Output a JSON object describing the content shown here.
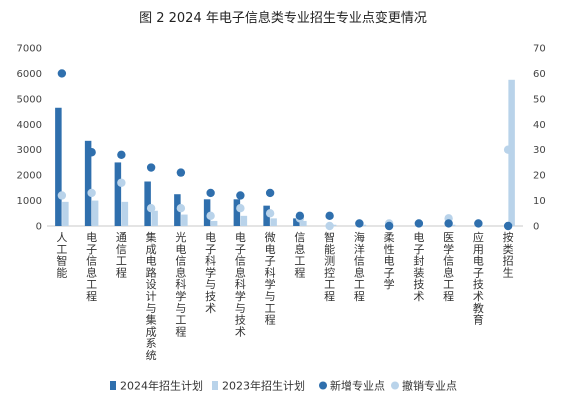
{
  "chart_data": {
    "type": "bar",
    "title": "图 2  2024 年电子信息类专业招生专业点变更情况",
    "categories": [
      "人工智能",
      "电子信息工程",
      "通信工程",
      "集成电路设计与集成系统",
      "光电信息科学与工程",
      "电子科学与技术",
      "电子信息科学与技术",
      "微电子科学与工程",
      "信息工程",
      "智能测控工程",
      "海洋信息工程",
      "柔性电子学",
      "电子封装技术",
      "医学信息工程",
      "应用电子技术教育",
      "按类招生"
    ],
    "left_axis": {
      "min": 0,
      "max": 7000,
      "ticks": [
        "0",
        "1000",
        "2000",
        "3000",
        "4000",
        "5000",
        "6000",
        "7000"
      ]
    },
    "right_axis": {
      "min": 0,
      "max": 70,
      "ticks": [
        "0",
        "10",
        "20",
        "30",
        "40",
        "50",
        "60",
        "70"
      ]
    },
    "series": [
      {
        "name": "2024年招生计划",
        "kind": "bar",
        "axis": "left",
        "color": "#2f6fad",
        "values": [
          4650,
          3350,
          2500,
          1750,
          1250,
          1050,
          1050,
          800,
          300,
          0,
          0,
          0,
          0,
          0,
          0,
          0
        ]
      },
      {
        "name": "2023年招生计划",
        "kind": "bar",
        "axis": "left",
        "color": "#b9d3ea",
        "values": [
          950,
          1000,
          950,
          600,
          450,
          200,
          400,
          300,
          200,
          50,
          50,
          20,
          20,
          50,
          20,
          5750
        ]
      },
      {
        "name": "新增专业点",
        "kind": "point",
        "axis": "right",
        "color": "#2f6fad",
        "values": [
          60,
          29,
          28,
          23,
          21,
          13,
          12,
          13,
          4,
          4,
          1,
          0,
          1,
          1,
          1,
          0
        ]
      },
      {
        "name": "撤销专业点",
        "kind": "point",
        "axis": "right",
        "color": "#b9d3ea",
        "values": [
          12,
          13,
          17,
          7,
          7,
          4,
          7,
          5,
          3,
          0,
          1,
          1,
          1,
          3,
          1,
          30
        ]
      }
    ],
    "legend_position": "bottom",
    "grid": false
  }
}
